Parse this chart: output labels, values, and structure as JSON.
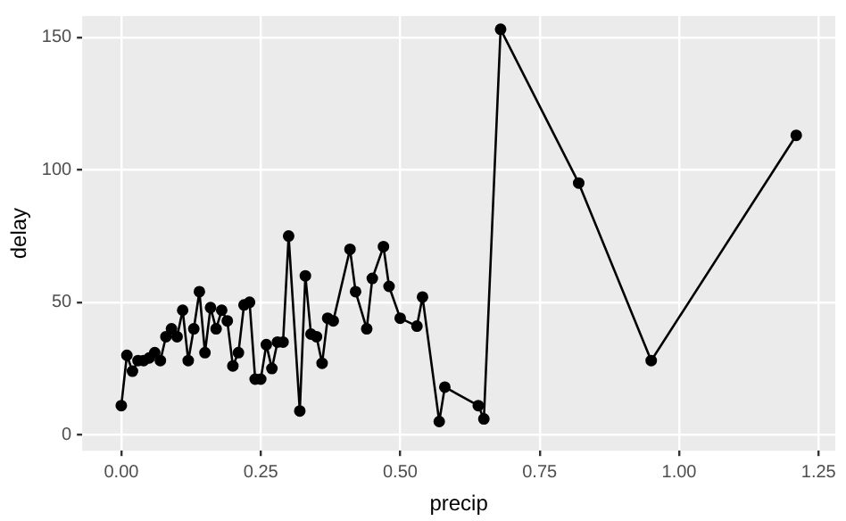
{
  "chart_data": {
    "type": "line",
    "xlabel": "precip",
    "ylabel": "delay",
    "x": [
      0,
      0.01,
      0.02,
      0.03,
      0.04,
      0.05,
      0.06,
      0.07,
      0.08,
      0.09,
      0.1,
      0.11,
      0.12,
      0.13,
      0.14,
      0.15,
      0.16,
      0.17,
      0.18,
      0.19,
      0.2,
      0.21,
      0.22,
      0.23,
      0.24,
      0.25,
      0.26,
      0.27,
      0.28,
      0.29,
      0.3,
      0.32,
      0.33,
      0.34,
      0.35,
      0.36,
      0.37,
      0.38,
      0.41,
      0.42,
      0.44,
      0.45,
      0.47,
      0.48,
      0.5,
      0.53,
      0.54,
      0.57,
      0.58,
      0.64,
      0.65,
      0.68,
      0.82,
      0.95,
      1.21
    ],
    "series": [
      {
        "color": "#000000",
        "values": [
          11,
          30,
          24,
          28,
          28,
          29,
          31,
          28,
          37,
          40,
          37,
          47,
          28,
          40,
          54,
          31,
          48,
          40,
          47,
          43,
          26,
          31,
          49,
          50,
          21,
          21,
          34,
          25,
          35,
          35,
          75,
          9,
          60,
          38,
          37,
          27,
          44,
          43,
          70,
          54,
          40,
          59,
          71,
          56,
          44,
          41,
          52,
          5,
          18,
          11,
          6,
          153,
          95,
          28,
          113
        ]
      }
    ],
    "xlim": [
      -0.07,
      1.28
    ],
    "xticks": [
      {
        "value": 0,
        "label": "0.00"
      },
      {
        "value": 0.25,
        "label": "0.25"
      },
      {
        "value": 0.5,
        "label": "0.50"
      },
      {
        "value": 0.75,
        "label": "0.75"
      },
      {
        "value": 1,
        "label": "1.00"
      },
      {
        "value": 1.25,
        "label": "1.25"
      }
    ],
    "ylim": [
      -6,
      158
    ],
    "yticks": [
      0,
      50,
      100,
      150
    ],
    "grid": true,
    "legend": false,
    "marker": "circle",
    "line_style": "solid"
  }
}
